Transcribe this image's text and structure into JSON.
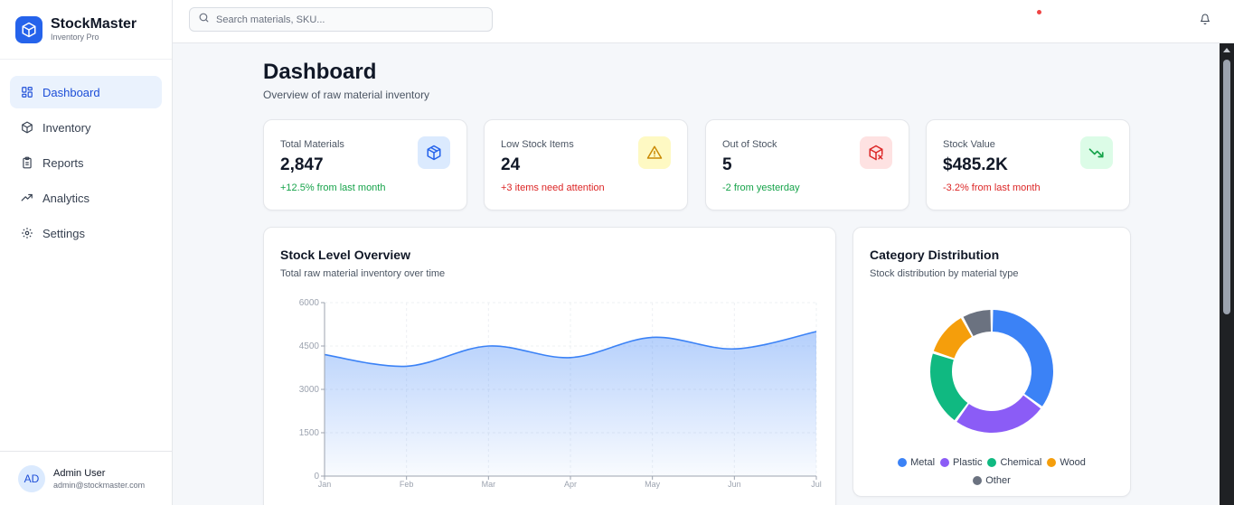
{
  "brand": {
    "name": "StockMaster",
    "subtitle": "Inventory Pro"
  },
  "nav": [
    {
      "label": "Dashboard",
      "icon": "grid-icon",
      "active": true
    },
    {
      "label": "Inventory",
      "icon": "package-icon"
    },
    {
      "label": "Reports",
      "icon": "clipboard-icon"
    },
    {
      "label": "Analytics",
      "icon": "trend-icon"
    },
    {
      "label": "Settings",
      "icon": "gear-icon"
    }
  ],
  "user": {
    "initials": "AD",
    "name": "Admin User",
    "email": "admin@stockmaster.com"
  },
  "search": {
    "placeholder": "Search materials, SKU...",
    "value": ""
  },
  "page": {
    "title": "Dashboard",
    "subtitle": "Overview of raw material inventory"
  },
  "stats": [
    {
      "label": "Total Materials",
      "value": "2,847",
      "change": "+12.5% from last month",
      "tone": "green",
      "icon": "package-icon",
      "icon_bg": "#dbeafe",
      "icon_color": "#2563eb"
    },
    {
      "label": "Low Stock Items",
      "value": "24",
      "change": "+3 items need attention",
      "tone": "red",
      "icon": "warning-icon",
      "icon_bg": "#fef9c3",
      "icon_color": "#ca8a04"
    },
    {
      "label": "Out of Stock",
      "value": "5",
      "change": "-2 from yesterday",
      "tone": "green",
      "icon": "package-x-icon",
      "icon_bg": "#fee2e2",
      "icon_color": "#dc2626"
    },
    {
      "label": "Stock Value",
      "value": "$485.2K",
      "change": "-3.2% from last month",
      "tone": "red",
      "icon": "trending-down-icon",
      "icon_bg": "#dcfce7",
      "icon_color": "#16a34a"
    }
  ],
  "stock_panel": {
    "title": "Stock Level Overview",
    "subtitle": "Total raw material inventory over time"
  },
  "category_panel": {
    "title": "Category Distribution",
    "subtitle": "Stock distribution by material type"
  },
  "chart_data": [
    {
      "type": "area",
      "x": [
        "Jan",
        "Feb",
        "Mar",
        "Apr",
        "May",
        "Jun",
        "Jul"
      ],
      "values": [
        4200,
        3800,
        4500,
        4100,
        4800,
        4400,
        5000
      ],
      "ylim": [
        0,
        6000
      ],
      "yticks": [
        0,
        1500,
        3000,
        4500,
        6000
      ],
      "grid": true,
      "color": "#3b82f6"
    },
    {
      "type": "pie",
      "donut": true,
      "categories": [
        "Metal",
        "Plastic",
        "Chemical",
        "Wood",
        "Other"
      ],
      "values": [
        35,
        25,
        20,
        12,
        8
      ],
      "colors": [
        "#3b82f6",
        "#8b5cf6",
        "#10b981",
        "#f59e0b",
        "#6b7280"
      ],
      "legend": "bottom"
    }
  ]
}
